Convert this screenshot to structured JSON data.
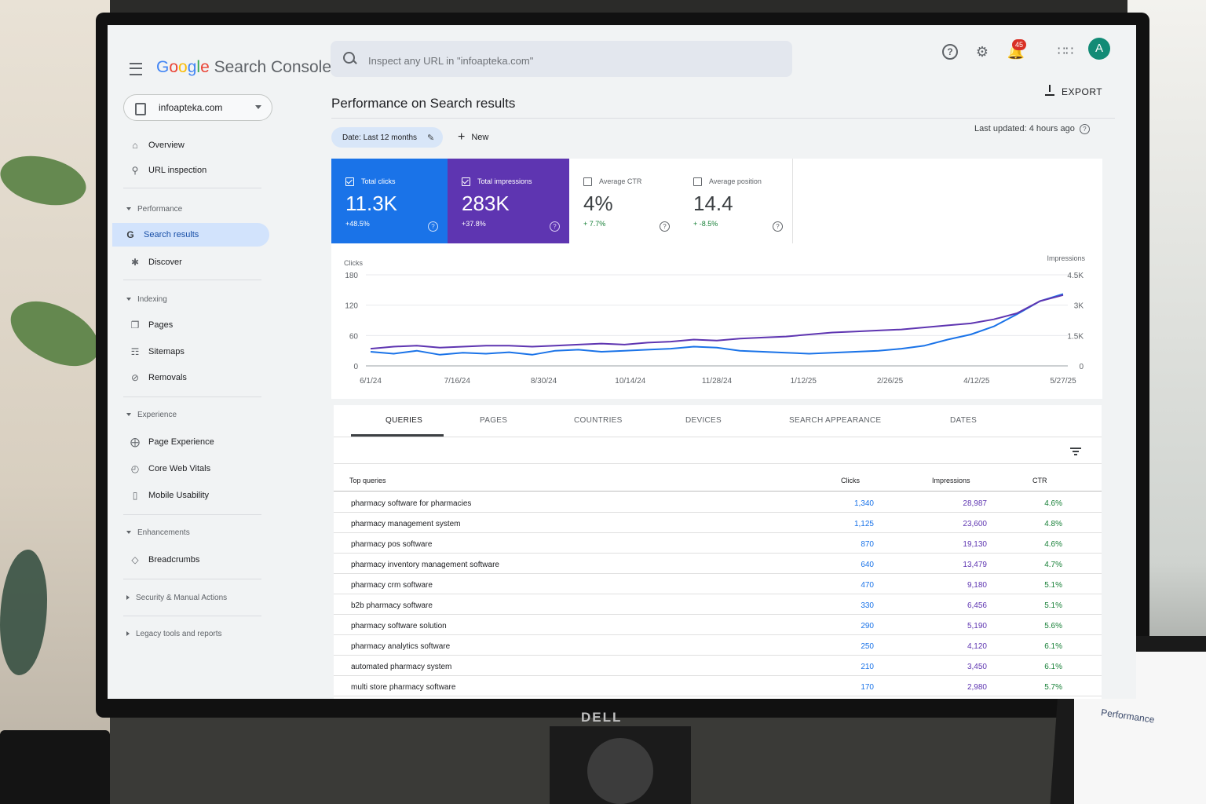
{
  "app": {
    "logo_google": "Google",
    "logo_product": "Search Console"
  },
  "search": {
    "placeholder": "Inspect any URL in \"infoapteka.com\""
  },
  "notifications": {
    "count": "45"
  },
  "account": {
    "initial": "A"
  },
  "property": {
    "label": "infoapteka.com"
  },
  "sidebar": {
    "overview": "Overview",
    "url_inspection": "URL inspection",
    "performance_section": "Performance",
    "search_results": "Search results",
    "discover": "Discover",
    "indexing_section": "Indexing",
    "pages": "Pages",
    "sitemaps": "Sitemaps",
    "removals": "Removals",
    "experience_section": "Experience",
    "page_experience": "Page Experience",
    "core_web_vitals": "Core Web Vitals",
    "mobile_usability": "Mobile Usability",
    "enhancements_section": "Enhancements",
    "breadcrumbs": "Breadcrumbs",
    "security_section": "Security & Manual Actions",
    "legacy_section": "Legacy tools and reports"
  },
  "header": {
    "title": "Performance on Search results",
    "export": "EXPORT",
    "date_filter": "Date: Last 12 months",
    "new": "New",
    "last_updated": "Last updated: 4 hours ago"
  },
  "metrics": {
    "clicks": {
      "label": "Total clicks",
      "value": "11.3K",
      "delta": "+48.5%",
      "checked": true
    },
    "impressions": {
      "label": "Total impressions",
      "value": "283K",
      "delta": "+37.8%",
      "checked": true
    },
    "ctr": {
      "label": "Average CTR",
      "value": "4%",
      "delta": "+ 7.7%",
      "checked": false
    },
    "position": {
      "label": "Average position",
      "value": "14.4",
      "delta": "+ -8.5%",
      "checked": false
    }
  },
  "colors": {
    "clicks": "#1a73e8",
    "impressions": "#5e35b1",
    "positive": "#188038"
  },
  "chart_data": {
    "type": "line",
    "left_axis_label": "Clicks",
    "right_axis_label": "Impressions",
    "left_ticks": [
      "180",
      "120",
      "60",
      "0"
    ],
    "right_ticks": [
      "4.5K",
      "3K",
      "1.5K",
      "0"
    ],
    "ylim_left": [
      0,
      180
    ],
    "ylim_right": [
      0,
      4500
    ],
    "x_ticks": [
      "6/1/24",
      "7/16/24",
      "8/30/24",
      "10/14/24",
      "11/28/24",
      "1/12/25",
      "2/26/25",
      "4/12/25",
      "5/27/25"
    ],
    "x_tick_values": [
      0,
      45,
      90,
      135,
      180,
      225,
      270,
      315,
      360
    ],
    "grid": true,
    "series": [
      {
        "name": "Clicks",
        "axis": "left",
        "color": "#1a73e8",
        "x": [
          0,
          12,
          24,
          36,
          48,
          60,
          72,
          84,
          96,
          108,
          120,
          132,
          144,
          156,
          168,
          180,
          192,
          204,
          216,
          228,
          240,
          252,
          264,
          276,
          288,
          300,
          312,
          324,
          336,
          348,
          360
        ],
        "values": [
          28,
          24,
          30,
          22,
          26,
          24,
          27,
          22,
          30,
          32,
          28,
          30,
          32,
          34,
          38,
          36,
          30,
          28,
          26,
          24,
          26,
          28,
          30,
          34,
          40,
          52,
          62,
          78,
          102,
          128,
          142
        ]
      },
      {
        "name": "Impressions",
        "axis": "left2",
        "color": "#5e35b1",
        "x": [
          0,
          12,
          24,
          36,
          48,
          60,
          72,
          84,
          96,
          108,
          120,
          132,
          144,
          156,
          168,
          180,
          192,
          204,
          216,
          228,
          240,
          252,
          264,
          276,
          288,
          300,
          312,
          324,
          336,
          348,
          360
        ],
        "values": [
          850,
          950,
          1000,
          900,
          950,
          1000,
          1000,
          950,
          1000,
          1050,
          1100,
          1050,
          1150,
          1200,
          1300,
          1250,
          1350,
          1400,
          1450,
          1550,
          1650,
          1700,
          1750,
          1800,
          1900,
          2000,
          2100,
          2300,
          2600,
          3200,
          3500
        ]
      }
    ]
  },
  "tabs": [
    "QUERIES",
    "PAGES",
    "COUNTRIES",
    "DEVICES",
    "SEARCH APPEARANCE",
    "DATES"
  ],
  "table": {
    "headers": {
      "query": "Top queries",
      "clicks": "Clicks",
      "impressions": "Impressions",
      "ctr": "CTR"
    },
    "rows": [
      {
        "query": "pharmacy software for pharmacies",
        "clicks": "1,340",
        "impressions": "28,987",
        "ctr": "4.6%"
      },
      {
        "query": "pharmacy management system",
        "clicks": "1,125",
        "impressions": "23,600",
        "ctr": "4.8%"
      },
      {
        "query": "pharmacy pos software",
        "clicks": "870",
        "impressions": "19,130",
        "ctr": "4.6%"
      },
      {
        "query": "pharmacy inventory management software",
        "clicks": "640",
        "impressions": "13,479",
        "ctr": "4.7%"
      },
      {
        "query": "pharmacy crm software",
        "clicks": "470",
        "impressions": "9,180",
        "ctr": "5.1%"
      },
      {
        "query": "b2b pharmacy software",
        "clicks": "330",
        "impressions": "6,456",
        "ctr": "5.1%"
      },
      {
        "query": "pharmacy software solution",
        "clicks": "290",
        "impressions": "5,190",
        "ctr": "5.6%"
      },
      {
        "query": "pharmacy analytics software",
        "clicks": "250",
        "impressions": "4,120",
        "ctr": "6.1%"
      },
      {
        "query": "automated pharmacy system",
        "clicks": "210",
        "impressions": "3,450",
        "ctr": "6.1%"
      },
      {
        "query": "multi store pharmacy software",
        "clicks": "170",
        "impressions": "2,980",
        "ctr": "5.7%"
      }
    ]
  },
  "monitor": {
    "brand": "DELL"
  },
  "laptop": {
    "title": "Performance"
  }
}
